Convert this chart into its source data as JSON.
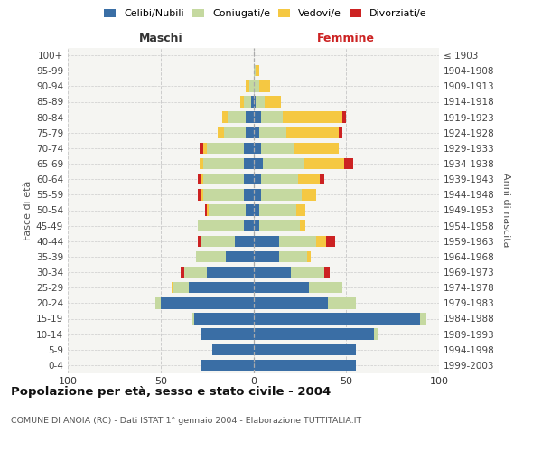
{
  "age_groups": [
    "0-4",
    "5-9",
    "10-14",
    "15-19",
    "20-24",
    "25-29",
    "30-34",
    "35-39",
    "40-44",
    "45-49",
    "50-54",
    "55-59",
    "60-64",
    "65-69",
    "70-74",
    "75-79",
    "80-84",
    "85-89",
    "90-94",
    "95-99",
    "100+"
  ],
  "birth_years": [
    "1999-2003",
    "1994-1998",
    "1989-1993",
    "1984-1988",
    "1979-1983",
    "1974-1978",
    "1969-1973",
    "1964-1968",
    "1959-1963",
    "1954-1958",
    "1949-1953",
    "1944-1948",
    "1939-1943",
    "1934-1938",
    "1929-1933",
    "1924-1928",
    "1919-1923",
    "1914-1918",
    "1909-1913",
    "1904-1908",
    "≤ 1903"
  ],
  "males": {
    "celibi": [
      28,
      22,
      28,
      32,
      50,
      35,
      25,
      15,
      10,
      5,
      4,
      5,
      5,
      5,
      5,
      4,
      4,
      1,
      0,
      0,
      0
    ],
    "coniugati": [
      0,
      0,
      0,
      1,
      3,
      8,
      12,
      16,
      18,
      25,
      20,
      22,
      22,
      22,
      20,
      12,
      10,
      4,
      2,
      0,
      0
    ],
    "vedovi": [
      0,
      0,
      0,
      0,
      0,
      1,
      0,
      0,
      0,
      0,
      1,
      1,
      1,
      2,
      2,
      3,
      3,
      2,
      2,
      0,
      0
    ],
    "divorziati": [
      0,
      0,
      0,
      0,
      0,
      0,
      2,
      0,
      2,
      0,
      1,
      2,
      2,
      0,
      2,
      0,
      0,
      0,
      0,
      0,
      0
    ]
  },
  "females": {
    "nubili": [
      55,
      55,
      65,
      90,
      40,
      30,
      20,
      14,
      14,
      3,
      3,
      4,
      4,
      5,
      4,
      3,
      4,
      1,
      0,
      0,
      0
    ],
    "coniugate": [
      0,
      0,
      2,
      3,
      15,
      18,
      18,
      15,
      20,
      22,
      20,
      22,
      20,
      22,
      18,
      15,
      12,
      5,
      3,
      1,
      0
    ],
    "vedove": [
      0,
      0,
      0,
      0,
      0,
      0,
      0,
      2,
      5,
      3,
      5,
      8,
      12,
      22,
      24,
      28,
      32,
      9,
      6,
      2,
      0
    ],
    "divorziate": [
      0,
      0,
      0,
      0,
      0,
      0,
      3,
      0,
      5,
      0,
      0,
      0,
      2,
      5,
      0,
      2,
      2,
      0,
      0,
      0,
      0
    ]
  },
  "colors": {
    "celibi_nubili": "#3a6ea5",
    "coniugati": "#c5d9a0",
    "vedovi": "#f5c842",
    "divorziati": "#cc2222"
  },
  "title": "Popolazione per età, sesso e stato civile - 2004",
  "subtitle": "COMUNE DI ANOIA (RC) - Dati ISTAT 1° gennaio 2004 - Elaborazione TUTTITALIA.IT",
  "xlabel_left": "Maschi",
  "xlabel_right": "Femmine",
  "ylabel_left": "Fasce di età",
  "ylabel_right": "Anni di nascita",
  "xlim": 100,
  "bg_color": "#f5f5f2",
  "grid_color": "#cccccc"
}
